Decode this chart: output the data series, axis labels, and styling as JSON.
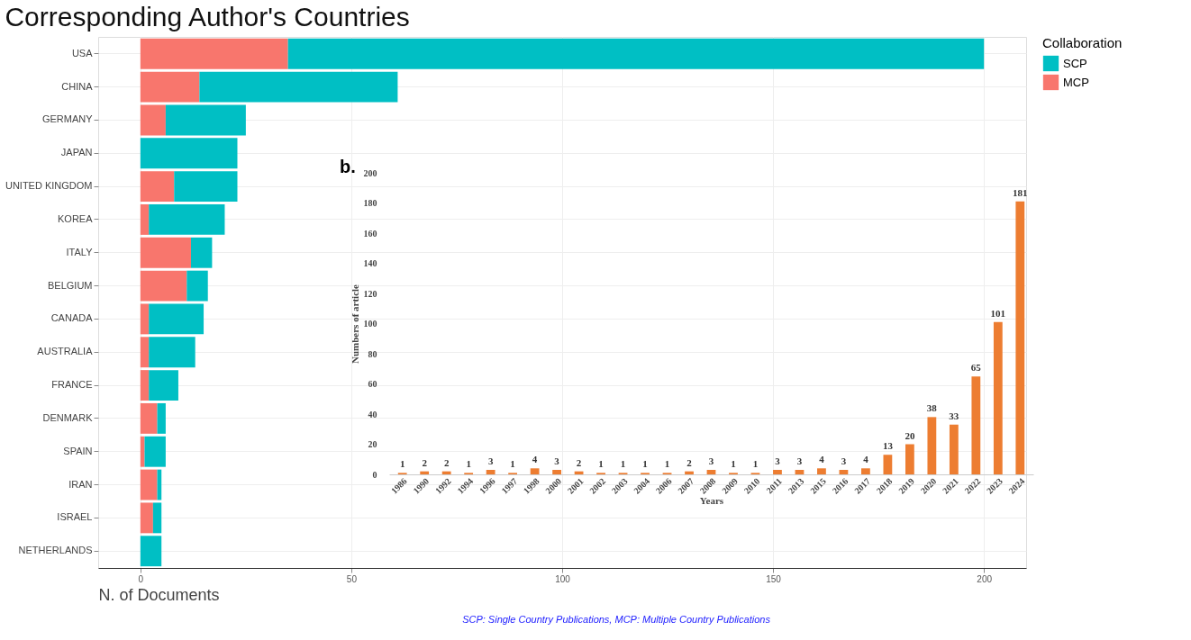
{
  "chart_data": [
    {
      "type": "bar",
      "orientation": "horizontal",
      "stacked": true,
      "title": "Corresponding Author's Countries",
      "xlabel": "N. of Documents",
      "legend_title": "Collaboration",
      "legend": "right",
      "grid": true,
      "categories": [
        "USA",
        "CHINA",
        "GERMANY",
        "JAPAN",
        "UNITED KINGDOM",
        "KOREA",
        "ITALY",
        "BELGIUM",
        "CANADA",
        "AUSTRALIA",
        "FRANCE",
        "DENMARK",
        "SPAIN",
        "IRAN",
        "ISRAEL",
        "NETHERLANDS"
      ],
      "series": [
        {
          "name": "MCP",
          "color": "#f8766d",
          "values": [
            35,
            14,
            6,
            0,
            8,
            2,
            12,
            11,
            2,
            2,
            2,
            4,
            1,
            4,
            3,
            0
          ]
        },
        {
          "name": "SCP",
          "color": "#00bfc4",
          "values": [
            165,
            47,
            19,
            23,
            15,
            18,
            5,
            5,
            13,
            11,
            7,
            2,
            5,
            1,
            2,
            5
          ]
        }
      ],
      "xlim": [
        -10,
        210
      ],
      "xticks": [
        0,
        50,
        100,
        150,
        200
      ],
      "annotations": [
        "SCP: Single Country Publications, MCP: Multiple Country Publications"
      ]
    },
    {
      "type": "bar",
      "xlabel": "Years",
      "ylabel": "Numbers of article",
      "color": "#ed7d31",
      "data_labels": true,
      "grid": false,
      "categories": [
        "1986",
        "1990",
        "1992",
        "1994",
        "1996",
        "1997",
        "1998",
        "2000",
        "2001",
        "2002",
        "2003",
        "2004",
        "2006",
        "2007",
        "2008",
        "2009",
        "2010",
        "2011",
        "2013",
        "2015",
        "2016",
        "2017",
        "2018",
        "2019",
        "2020",
        "2021",
        "2022",
        "2023",
        "2024"
      ],
      "values": [
        1,
        2,
        2,
        1,
        3,
        1,
        4,
        3,
        2,
        1,
        1,
        1,
        1,
        2,
        3,
        1,
        1,
        3,
        3,
        4,
        3,
        4,
        13,
        20,
        38,
        33,
        65,
        101,
        181
      ],
      "ylim": [
        0,
        200
      ],
      "yticks": [
        0,
        20,
        40,
        60,
        80,
        100,
        120,
        140,
        160,
        180,
        200
      ],
      "annotations": [
        "b."
      ]
    }
  ]
}
